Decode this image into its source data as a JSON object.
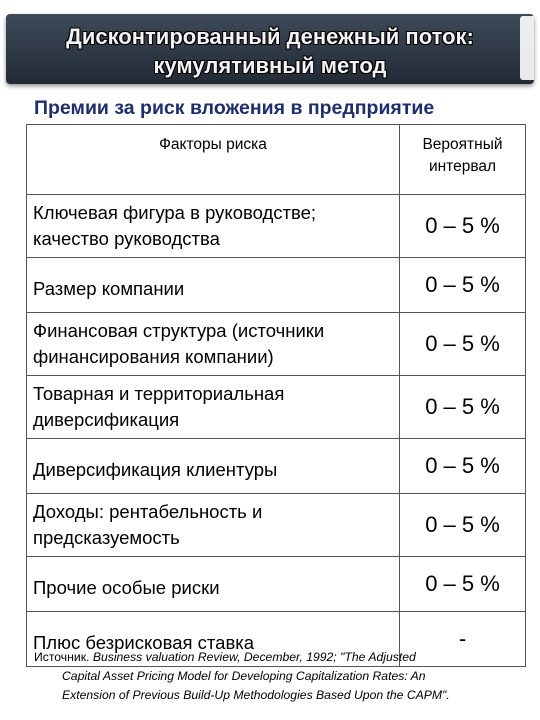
{
  "slide": {
    "title_line1": "Дисконтированный денежный поток:",
    "title_line2": "кумулятивный метод",
    "subtitle": "Премии за риск вложения в предприятие"
  },
  "table": {
    "headers": [
      "Факторы риска",
      "Вероятный интервал"
    ],
    "rows": [
      {
        "factor": "Ключевая фигура в руководстве; качество руководства",
        "interval": "0 – 5 %"
      },
      {
        "factor": "Размер компании",
        "interval": "0 – 5 %"
      },
      {
        "factor": "Финансовая структура (источники финансирования компании)",
        "interval": "0 – 5 %"
      },
      {
        "factor": "Товарная и территориальная диверсификация",
        "interval": "0 – 5 %"
      },
      {
        "factor": "Диверсификация клиентуры",
        "interval": "0 – 5 %"
      },
      {
        "factor": "Доходы: рентабельность и предсказуемость",
        "interval": "0 – 5 %"
      },
      {
        "factor": "Прочие особые риски",
        "interval": "0 – 5 %"
      },
      {
        "factor": "Плюс безрисковая ставка",
        "interval": "-"
      }
    ]
  },
  "source": {
    "prefix": "Источник.",
    "line1": "Business valuation Review, December, 1992; \"The Adjusted",
    "line2": "Capital Asset Pricing Model for Developing Capitalization Rates: An",
    "line3": "Extension of Previous Build-Up Methodologies Based Upon the CAPM\"."
  }
}
